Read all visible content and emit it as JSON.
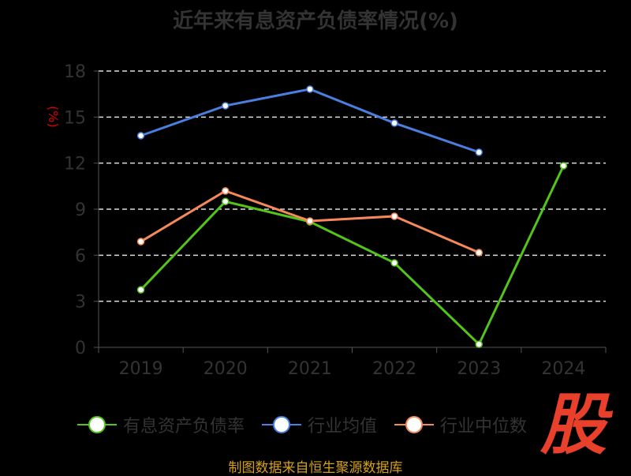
{
  "chart_data": {
    "type": "line",
    "title": "近年来有息资产负债率情况(%)",
    "ylabel": "(%)",
    "xlabel": "",
    "categories": [
      "2019",
      "2020",
      "2021",
      "2022",
      "2023",
      "2024"
    ],
    "yticks": [
      0,
      3,
      6,
      9,
      12,
      15,
      18
    ],
    "ylim": [
      0,
      18
    ],
    "grid": true,
    "legend_position": "bottom",
    "series": [
      {
        "name": "有息资产负债率",
        "color": "#52c41a",
        "values": [
          3.75,
          9.5,
          8.18,
          5.5,
          0.2,
          11.83
        ]
      },
      {
        "name": "行业均值",
        "color": "#4a7fe0",
        "values": [
          13.79,
          15.74,
          16.82,
          14.61,
          12.71,
          null
        ]
      },
      {
        "name": "行业中位数",
        "color": "#f5895a",
        "values": [
          6.89,
          10.19,
          8.23,
          8.54,
          6.17,
          null
        ]
      }
    ]
  },
  "source": "制图数据来自恒生聚源数据库",
  "watermark": "股"
}
